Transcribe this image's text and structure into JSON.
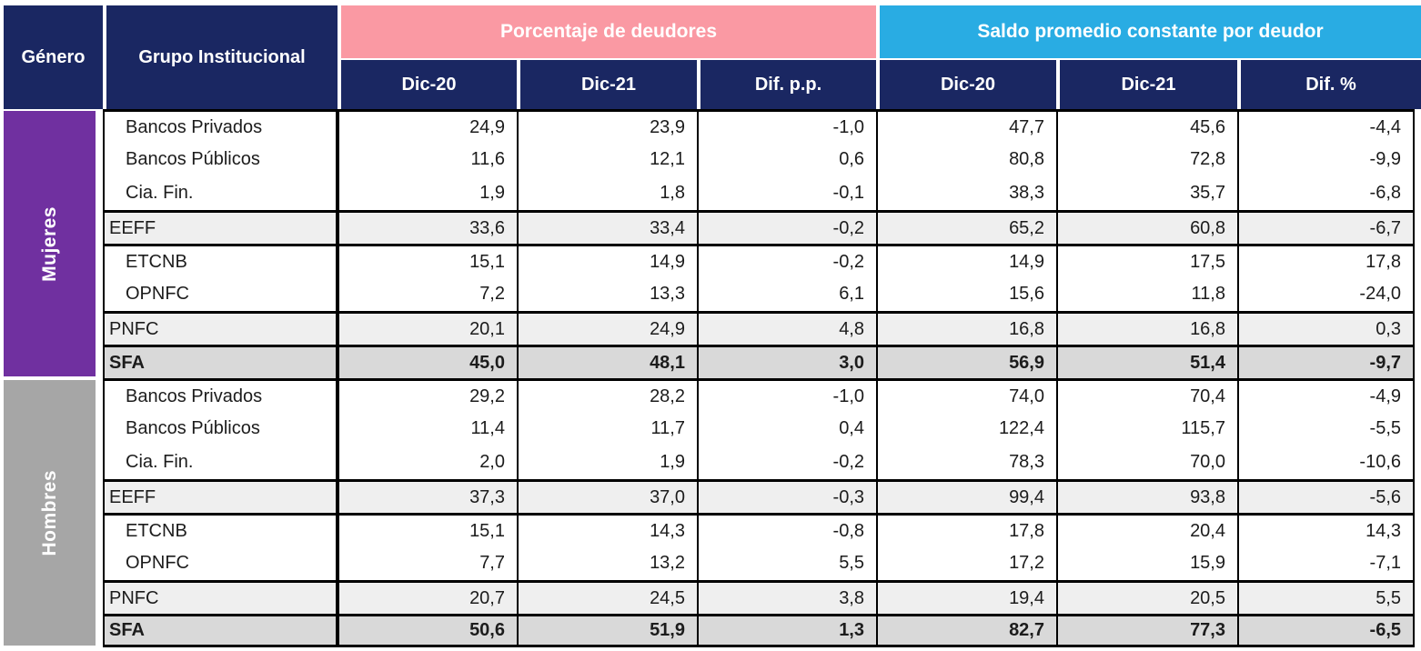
{
  "colors": {
    "navy": "#1A2762",
    "pink": "#FA99A3",
    "cyan": "#29ACE3",
    "purple": "#7030A0",
    "gray_band": "#A6A6A6",
    "row_light": "#EFEFEF",
    "row_dark": "#D9D9D9"
  },
  "header": {
    "genero_label": "Género",
    "grupo_label": "Grupo Institucional",
    "pink_band_label": "Porcentaje de deudores",
    "cyan_band_label": "Saldo promedio constante por deudor",
    "subheaders": [
      "Dic-20",
      "Dic-21",
      "Dif. p.p.",
      "Dic-20",
      "Dic-21",
      "Dif. %"
    ]
  },
  "groups": [
    {
      "gender_label": "Mujeres",
      "rows": [
        {
          "label": "Bancos Privados",
          "indent": true,
          "bg": "white",
          "bold": false,
          "block_top": true,
          "values": [
            "24,9",
            "23,9",
            "-1,0",
            "47,7",
            "45,6",
            "-4,4"
          ]
        },
        {
          "label": "Bancos Públicos",
          "indent": true,
          "bg": "white",
          "bold": false,
          "block_top": false,
          "values": [
            "11,6",
            "12,1",
            "0,6",
            "80,8",
            "72,8",
            "-9,9"
          ]
        },
        {
          "label": "Cia. Fin.",
          "indent": true,
          "bg": "white",
          "bold": false,
          "block_top": false,
          "values": [
            "1,9",
            "1,8",
            "-0,1",
            "38,3",
            "35,7",
            "-6,8"
          ]
        },
        {
          "label": "EEFF",
          "indent": false,
          "bg": "light",
          "bold": false,
          "block_top": true,
          "values": [
            "33,6",
            "33,4",
            "-0,2",
            "65,2",
            "60,8",
            "-6,7"
          ]
        },
        {
          "label": "ETCNB",
          "indent": true,
          "bg": "white",
          "bold": false,
          "block_top": true,
          "values": [
            "15,1",
            "14,9",
            "-0,2",
            "14,9",
            "17,5",
            "17,8"
          ]
        },
        {
          "label": "OPNFC",
          "indent": true,
          "bg": "white",
          "bold": false,
          "block_top": false,
          "values": [
            "7,2",
            "13,3",
            "6,1",
            "15,6",
            "11,8",
            "-24,0"
          ]
        },
        {
          "label": "PNFC",
          "indent": false,
          "bg": "light",
          "bold": false,
          "block_top": true,
          "values": [
            "20,1",
            "24,9",
            "4,8",
            "16,8",
            "16,8",
            "0,3"
          ]
        },
        {
          "label": "SFA",
          "indent": false,
          "bg": "dark",
          "bold": true,
          "block_top": true,
          "values": [
            "45,0",
            "48,1",
            "3,0",
            "56,9",
            "51,4",
            "-9,7"
          ]
        }
      ]
    },
    {
      "gender_label": "Hombres",
      "rows": [
        {
          "label": "Bancos Privados",
          "indent": true,
          "bg": "white",
          "bold": false,
          "block_top": true,
          "values": [
            "29,2",
            "28,2",
            "-1,0",
            "74,0",
            "70,4",
            "-4,9"
          ]
        },
        {
          "label": "Bancos Públicos",
          "indent": true,
          "bg": "white",
          "bold": false,
          "block_top": false,
          "values": [
            "11,4",
            "11,7",
            "0,4",
            "122,4",
            "115,7",
            "-5,5"
          ]
        },
        {
          "label": "Cia. Fin.",
          "indent": true,
          "bg": "white",
          "bold": false,
          "block_top": false,
          "values": [
            "2,0",
            "1,9",
            "-0,2",
            "78,3",
            "70,0",
            "-10,6"
          ]
        },
        {
          "label": "EEFF",
          "indent": false,
          "bg": "light",
          "bold": false,
          "block_top": true,
          "values": [
            "37,3",
            "37,0",
            "-0,3",
            "99,4",
            "93,8",
            "-5,6"
          ]
        },
        {
          "label": "ETCNB",
          "indent": true,
          "bg": "white",
          "bold": false,
          "block_top": true,
          "values": [
            "15,1",
            "14,3",
            "-0,8",
            "17,8",
            "20,4",
            "14,3"
          ]
        },
        {
          "label": "OPNFC",
          "indent": true,
          "bg": "white",
          "bold": false,
          "block_top": false,
          "values": [
            "7,7",
            "13,2",
            "5,5",
            "17,2",
            "15,9",
            "-7,1"
          ]
        },
        {
          "label": "PNFC",
          "indent": false,
          "bg": "light",
          "bold": false,
          "block_top": true,
          "values": [
            "20,7",
            "24,5",
            "3,8",
            "19,4",
            "20,5",
            "5,5"
          ]
        },
        {
          "label": "SFA",
          "indent": false,
          "bg": "dark",
          "bold": true,
          "block_top": true,
          "values": [
            "50,6",
            "51,9",
            "1,3",
            "82,7",
            "77,3",
            "-6,5"
          ]
        }
      ]
    }
  ],
  "chart_data": {
    "type": "table",
    "title": "",
    "column_groups": [
      "Porcentaje de deudores",
      "Saldo promedio constante por deudor"
    ],
    "columns": [
      "Género",
      "Grupo Institucional",
      "% deudores Dic-20",
      "% deudores Dic-21",
      "% deudores Dif. p.p.",
      "Saldo Dic-20",
      "Saldo Dic-21",
      "Saldo Dif. %"
    ],
    "rows": [
      [
        "Mujeres",
        "Bancos Privados",
        24.9,
        23.9,
        -1.0,
        47.7,
        45.6,
        -4.4
      ],
      [
        "Mujeres",
        "Bancos Públicos",
        11.6,
        12.1,
        0.6,
        80.8,
        72.8,
        -9.9
      ],
      [
        "Mujeres",
        "Cia. Fin.",
        1.9,
        1.8,
        -0.1,
        38.3,
        35.7,
        -6.8
      ],
      [
        "Mujeres",
        "EEFF",
        33.6,
        33.4,
        -0.2,
        65.2,
        60.8,
        -6.7
      ],
      [
        "Mujeres",
        "ETCNB",
        15.1,
        14.9,
        -0.2,
        14.9,
        17.5,
        17.8
      ],
      [
        "Mujeres",
        "OPNFC",
        7.2,
        13.3,
        6.1,
        15.6,
        11.8,
        -24.0
      ],
      [
        "Mujeres",
        "PNFC",
        20.1,
        24.9,
        4.8,
        16.8,
        16.8,
        0.3
      ],
      [
        "Mujeres",
        "SFA",
        45.0,
        48.1,
        3.0,
        56.9,
        51.4,
        -9.7
      ],
      [
        "Hombres",
        "Bancos Privados",
        29.2,
        28.2,
        -1.0,
        74.0,
        70.4,
        -4.9
      ],
      [
        "Hombres",
        "Bancos Públicos",
        11.4,
        11.7,
        0.4,
        122.4,
        115.7,
        -5.5
      ],
      [
        "Hombres",
        "Cia. Fin.",
        2.0,
        1.9,
        -0.2,
        78.3,
        70.0,
        -10.6
      ],
      [
        "Hombres",
        "EEFF",
        37.3,
        37.0,
        -0.3,
        99.4,
        93.8,
        -5.6
      ],
      [
        "Hombres",
        "ETCNB",
        15.1,
        14.3,
        -0.8,
        17.8,
        20.4,
        14.3
      ],
      [
        "Hombres",
        "OPNFC",
        7.7,
        13.2,
        5.5,
        17.2,
        15.9,
        -7.1
      ],
      [
        "Hombres",
        "PNFC",
        20.7,
        24.5,
        3.8,
        19.4,
        20.5,
        5.5
      ],
      [
        "Hombres",
        "SFA",
        50.6,
        51.9,
        1.3,
        82.7,
        77.3,
        -6.5
      ]
    ]
  }
}
